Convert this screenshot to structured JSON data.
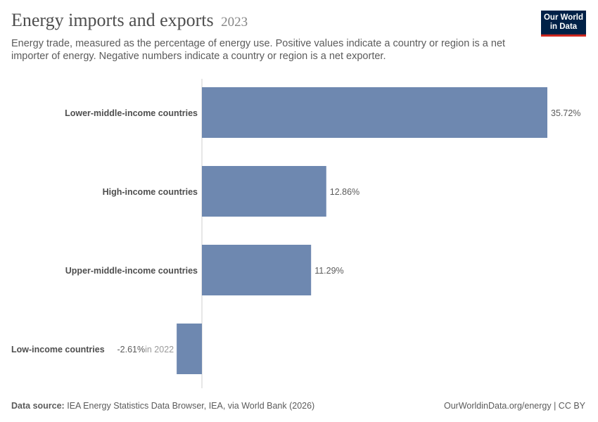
{
  "header": {
    "title": "Energy imports and exports",
    "year": "2023",
    "subtitle": "Energy trade, measured as the percentage of energy use. Positive values indicate a country or region is a net importer of energy. Negative numbers indicate a country or region is a net exporter.",
    "logo_line1": "Our World",
    "logo_line2": "in Data"
  },
  "footer": {
    "source_label": "Data source:",
    "source_text": "IEA Energy Statistics Data Browser, IEA, via World Bank (2026)",
    "credit": "OurWorldinData.org/energy | CC BY"
  },
  "colors": {
    "bar": "#6e88b0",
    "brand": "#002147",
    "brand_accent": "#ce261e"
  },
  "chart_data": {
    "type": "bar",
    "orientation": "horizontal",
    "unit": "%",
    "categories": [
      "Lower-middle-income countries",
      "High-income countries",
      "Upper-middle-income countries",
      "Low-income countries"
    ],
    "values": [
      35.72,
      12.86,
      11.29,
      -2.61
    ],
    "value_labels": [
      "35.72%",
      "12.86%",
      "11.29%",
      "-2.61%"
    ],
    "notes": [
      "",
      "",
      "",
      "in 2022"
    ],
    "xlim": [
      -2.61,
      35.72
    ]
  }
}
